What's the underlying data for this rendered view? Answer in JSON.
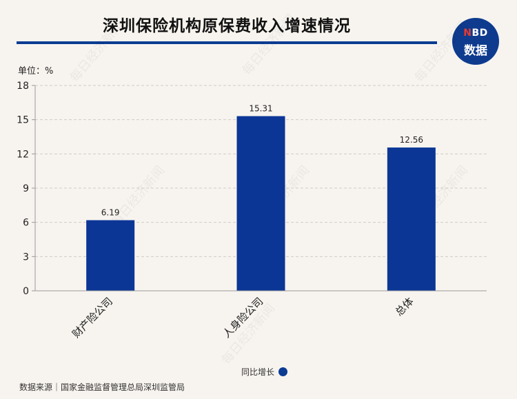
{
  "title": "深圳保险机构原保费收入增速情况",
  "logo": {
    "top_n": "N",
    "top_rest": "BD",
    "bottom": "数据"
  },
  "unit_label": "单位：%",
  "source": "数据来源｜国家金融监督管理总局深圳监管局",
  "watermark": "每日经济新闻",
  "chart_data": {
    "type": "bar",
    "title": "深圳保险机构原保费收入增速情况",
    "xlabel": "",
    "ylabel": "单位：%",
    "categories": [
      "财产险公司",
      "人身险公司",
      "总体"
    ],
    "series": [
      {
        "name": "同比增长",
        "values": [
          6.19,
          15.31,
          12.56
        ],
        "color": "#0b3696"
      }
    ],
    "ylim": [
      0,
      18
    ],
    "yticks": [
      0,
      3,
      6,
      9,
      12,
      15,
      18
    ],
    "grid": true,
    "legend": "bottom-center"
  }
}
